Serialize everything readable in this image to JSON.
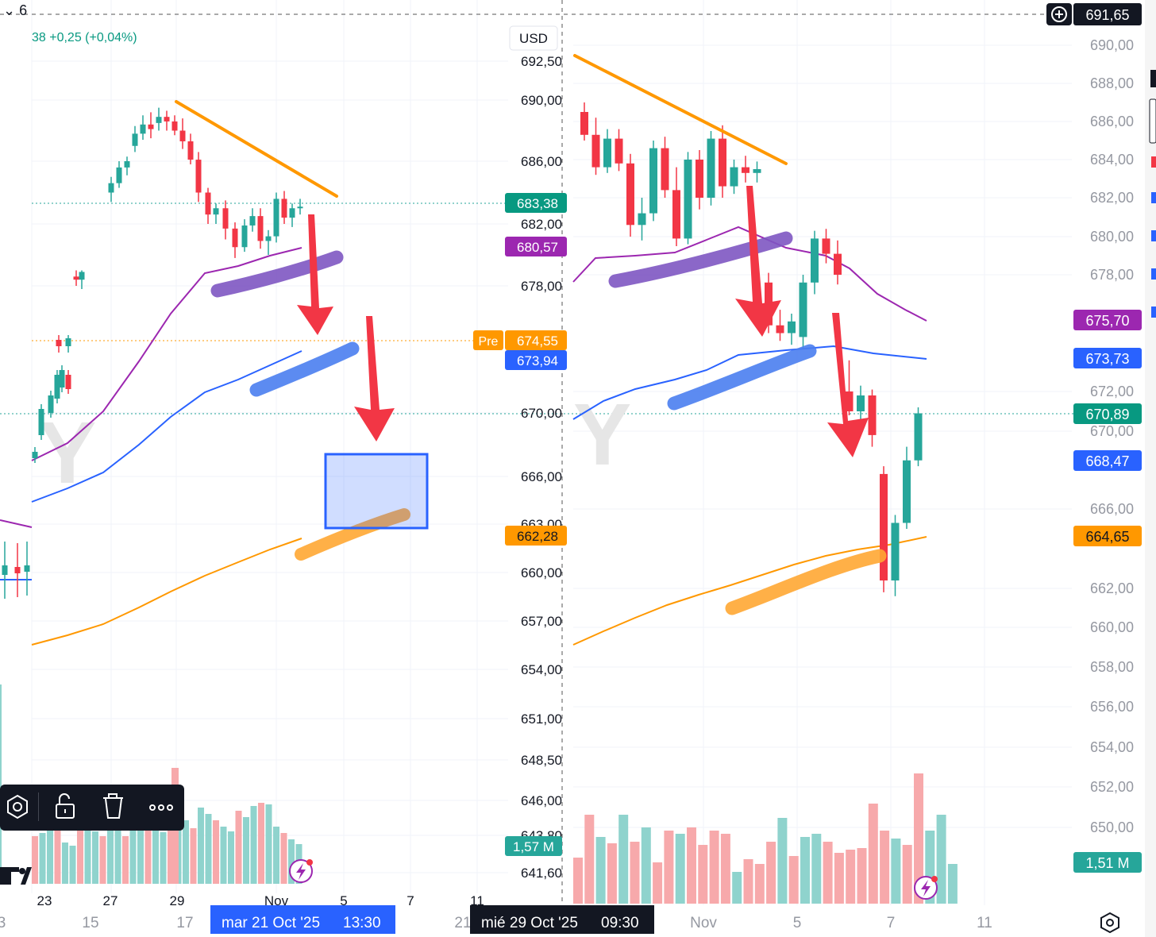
{
  "top": {
    "interval_glyph": "⌄ 6",
    "change_text": "38  +0,25 (+0,04%)",
    "crosshair_price": "691,65"
  },
  "left_chart": {
    "currency": "USD",
    "price_ticks": [
      "692,50",
      "690,00",
      "686,00",
      "682,00",
      "678,00",
      "670,00",
      "666,00",
      "663,00",
      "660,00",
      "657,00",
      "654,00",
      "651,00",
      "648,50",
      "646,00",
      "643,80",
      "641,60"
    ],
    "time_ticks_top": [
      "23",
      "27",
      "29",
      "Nov",
      "5",
      "7",
      "11"
    ],
    "time_ticks_bottom": [
      "3",
      "15",
      "17",
      "21"
    ],
    "badges": {
      "last": "683,38",
      "purple_ma": "680,57",
      "pre_label": "Pre",
      "pre": "674,55",
      "blue_ma": "673,94",
      "orange_ma": "662,28",
      "volume": "1,57 M"
    },
    "crosshair_date": "mar 21 Oct '25",
    "crosshair_time": "13:30"
  },
  "right_chart": {
    "price_ticks": [
      "690,00",
      "688,00",
      "686,00",
      "684,00",
      "682,00",
      "680,00",
      "678,00",
      "672,00",
      "670,00",
      "666,00",
      "662,00",
      "660,00",
      "658,00",
      "656,00",
      "654,00",
      "652,00",
      "650,00"
    ],
    "time_ticks": [
      "Nov",
      "5",
      "7",
      "11"
    ],
    "badges": {
      "purple_ma": "675,70",
      "blue_ma": "673,73",
      "last": "670,89",
      "blue_short": "668,47",
      "orange_ma": "664,65",
      "volume": "1,51 M"
    },
    "crosshair_date": "mié 29 Oct '25",
    "crosshair_time": "09:30"
  },
  "toolbar": {
    "icons": [
      "settings-hex-icon",
      "unlock-icon",
      "trash-icon",
      "more-icon"
    ]
  },
  "colors": {
    "up": "#26a69a",
    "down": "#f23645",
    "purple": "#9c27b0",
    "blue": "#2962ff",
    "orange": "#ff9800",
    "arrow": "#f23645",
    "trendline": "#ff9800"
  },
  "chart_data": [
    {
      "type": "candlestick",
      "panel": "left",
      "candles": [
        [
          678.6,
          679.0,
          678.0,
          678.4
        ],
        [
          678.4,
          679.0,
          677.8,
          678.9
        ],
        [
          674.6,
          674.9,
          673.8,
          674.2
        ],
        [
          674.2,
          674.9,
          673.8,
          674.7
        ],
        [
          684.0,
          685.0,
          683.4,
          684.6
        ],
        [
          684.6,
          686.0,
          684.3,
          685.6
        ],
        [
          685.6,
          686.3,
          685.1,
          686.0
        ],
        [
          687.0,
          688.3,
          686.6,
          687.8
        ],
        [
          687.8,
          689.0,
          687.4,
          688.4
        ],
        [
          688.4,
          689.2,
          687.5,
          688.1
        ],
        [
          688.5,
          689.5,
          688.0,
          688.9
        ],
        [
          688.9,
          689.3,
          688.0,
          688.6
        ],
        [
          688.6,
          689.0,
          687.7,
          688.0
        ],
        [
          688.0,
          688.8,
          686.8,
          687.3
        ],
        [
          687.3,
          687.8,
          685.8,
          686.1
        ],
        [
          686.1,
          686.6,
          683.4,
          684.0
        ],
        [
          684.0,
          684.3,
          682.0,
          682.6
        ],
        [
          682.6,
          683.3,
          682.0,
          683.0
        ],
        [
          683.0,
          683.5,
          681.0,
          681.7
        ],
        [
          681.7,
          682.1,
          679.8,
          680.5
        ],
        [
          680.5,
          682.3,
          680.2,
          681.9
        ],
        [
          681.9,
          683.0,
          681.5,
          682.5
        ],
        [
          682.5,
          683.0,
          680.4,
          680.9
        ],
        [
          680.9,
          681.6,
          680.0,
          681.2
        ],
        [
          681.2,
          684.0,
          680.8,
          683.6
        ],
        [
          683.6,
          684.1,
          682.0,
          682.4
        ],
        [
          682.4,
          683.3,
          681.8,
          683.0
        ],
        [
          683.0,
          683.6,
          682.6,
          683.1
        ]
      ]
    },
    {
      "type": "candlestick",
      "panel": "right",
      "candles": [
        [
          686.5,
          687.0,
          685.0,
          685.3
        ],
        [
          685.3,
          686.2,
          683.2,
          683.6
        ],
        [
          683.6,
          685.6,
          683.3,
          685.1
        ],
        [
          685.1,
          685.6,
          683.4,
          683.8
        ],
        [
          683.8,
          684.3,
          680.0,
          680.6
        ],
        [
          680.6,
          682.0,
          679.8,
          681.2
        ],
        [
          681.2,
          685.0,
          680.8,
          684.6
        ],
        [
          684.6,
          685.2,
          682.0,
          682.4
        ],
        [
          682.4,
          683.6,
          679.5,
          679.9
        ],
        [
          679.9,
          684.4,
          679.6,
          684.0
        ],
        [
          684.0,
          684.5,
          681.4,
          682.0
        ],
        [
          682.0,
          685.5,
          681.6,
          685.1
        ],
        [
          685.1,
          685.8,
          682.0,
          682.6
        ],
        [
          682.6,
          684.0,
          682.2,
          683.6
        ],
        [
          683.6,
          684.2,
          682.8,
          683.3
        ],
        [
          683.3,
          683.9,
          682.8,
          683.5
        ],
        [
          677.6,
          678.1,
          675.0,
          675.4
        ],
        [
          675.4,
          676.2,
          674.6,
          675.0
        ],
        [
          675.0,
          676.0,
          674.4,
          675.6
        ],
        [
          674.8,
          678.0,
          674.2,
          677.6
        ],
        [
          677.6,
          680.3,
          677.0,
          679.9
        ],
        [
          679.9,
          680.4,
          678.6,
          679.1
        ],
        [
          679.1,
          679.8,
          677.5,
          678.0
        ],
        [
          672.0,
          673.6,
          670.8,
          671.0
        ],
        [
          671.0,
          672.3,
          670.0,
          671.8
        ],
        [
          671.8,
          672.1,
          669.2,
          669.8
        ],
        [
          667.8,
          668.2,
          661.8,
          662.4
        ],
        [
          662.4,
          665.7,
          661.6,
          665.3
        ],
        [
          665.3,
          669.2,
          665.0,
          668.5
        ],
        [
          668.5,
          671.2,
          668.2,
          670.9
        ]
      ]
    }
  ]
}
